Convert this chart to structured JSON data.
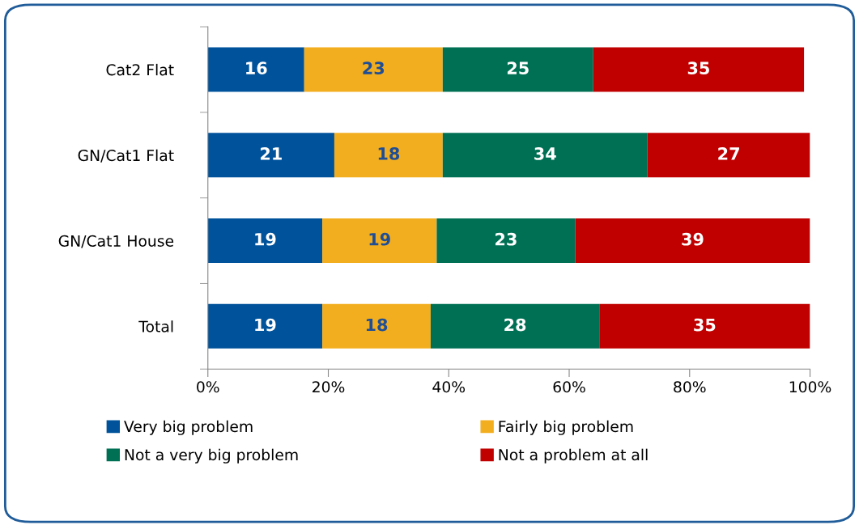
{
  "chart_data": {
    "type": "bar",
    "orientation": "horizontal",
    "stacked": true,
    "categories": [
      "Cat2 Flat",
      "GN/Cat1 Flat",
      "GN/Cat1 House",
      "Total"
    ],
    "series": [
      {
        "name": "Very big problem",
        "color": "#00529b",
        "values": [
          16,
          21,
          19,
          19
        ]
      },
      {
        "name": "Fairly big problem",
        "color": "#f3ae1f",
        "values": [
          23,
          18,
          19,
          18
        ]
      },
      {
        "name": "Not a very big problem",
        "color": "#007054",
        "values": [
          25,
          34,
          23,
          28
        ]
      },
      {
        "name": "Not a problem at all",
        "color": "#c00000",
        "values": [
          35,
          27,
          39,
          35
        ]
      }
    ],
    "xlim": [
      0,
      100
    ],
    "xticks": [
      {
        "value": 0,
        "label": "0%"
      },
      {
        "value": 20,
        "label": "20%"
      },
      {
        "value": 40,
        "label": "40%"
      },
      {
        "value": 60,
        "label": "60%"
      },
      {
        "value": 80,
        "label": "80%"
      },
      {
        "value": 100,
        "label": "100%"
      }
    ],
    "data_labels": true,
    "grid": false,
    "legend": "bottom"
  }
}
